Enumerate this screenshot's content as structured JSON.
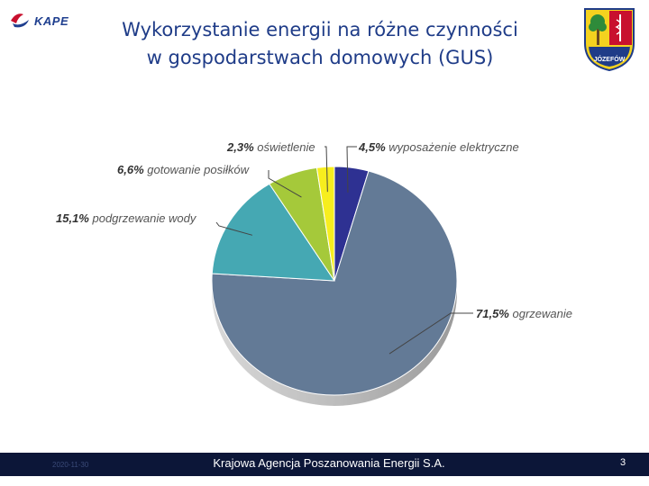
{
  "header": {
    "logo_text": "KAPE",
    "title_line1": "Wykorzystanie energii na różne czynności",
    "title_line2": "w gospodarstwach domowych (GUS)",
    "crest_text": "JÓZEFÓW"
  },
  "footer": {
    "date": "2020-11-30",
    "organization": "Krajowa Agencja Poszanowania Energii S.A.",
    "page_number": "3"
  },
  "colors": {
    "footer_bg": "#0c1638",
    "title": "#1f3c88"
  },
  "chart_data": {
    "type": "pie",
    "style": "3d",
    "slices": [
      {
        "label": "wyposażenie elektryczne",
        "pct_text": "4,5%",
        "value": 4.5,
        "color": "#2e3192"
      },
      {
        "label": "ogrzewanie",
        "pct_text": "71,5%",
        "value": 71.5,
        "color": "#637a96"
      },
      {
        "label": "podgrzewanie wody",
        "pct_text": "15,1%",
        "value": 15.1,
        "color": "#45a8b3"
      },
      {
        "label": "gotowanie posiłków",
        "pct_text": "6,6%",
        "value": 6.6,
        "color": "#a5c93a"
      },
      {
        "label": "oświetlenie",
        "pct_text": "2,3%",
        "value": 2.3,
        "color": "#f7ee1e"
      }
    ]
  }
}
